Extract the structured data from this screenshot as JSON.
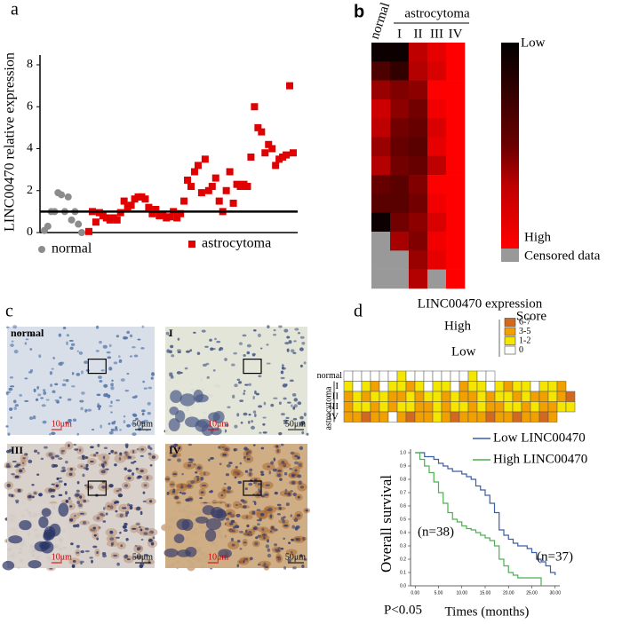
{
  "panel_labels": [
    "a",
    "b",
    "c",
    "d"
  ],
  "chart_data": [
    {
      "type": "strip",
      "y_label": "LINC00470 relative expression",
      "ylim": [
        0,
        8
      ],
      "yticks": [
        0,
        2,
        4,
        6,
        8
      ],
      "reference_line": 1,
      "series": [
        {
          "name": "normal",
          "color": "#8c8c8c",
          "marker": "circle",
          "values": [
            0.1,
            0.3,
            1.0,
            1.0,
            1.9,
            1.8,
            1.0,
            1.7,
            0.6,
            1.0,
            0.4,
            0.0
          ]
        },
        {
          "name": "astrocytoma",
          "color": "#e00000",
          "marker": "square",
          "values": [
            0.05,
            1.0,
            0.5,
            0.95,
            0.8,
            0.7,
            0.6,
            0.7,
            0.6,
            0.95,
            1.5,
            1.2,
            1.3,
            1.6,
            1.7,
            1.7,
            1.6,
            1.2,
            0.9,
            1.1,
            0.8,
            0.85,
            0.7,
            0.75,
            1.0,
            0.7,
            0.9,
            1.5,
            2.5,
            2.2,
            2.9,
            3.2,
            1.9,
            3.5,
            2.0,
            2.2,
            2.6,
            1.5,
            1.0,
            2.0,
            2.9,
            1.4,
            2.3,
            2.2,
            2.3,
            2.2,
            3.6,
            6.0,
            5.0,
            4.8,
            3.8,
            4.2,
            4.0,
            3.2,
            3.5,
            3.6,
            3.7,
            7.0,
            3.8
          ]
        }
      ]
    },
    {
      "type": "heatmap",
      "group_label": "astrocytoma",
      "low_color": "#000000",
      "high_color": "#ff0000",
      "censored_color": "#999999",
      "colorbar_labels": [
        "Low",
        "High",
        "Censored data"
      ],
      "columns": [
        {
          "name": "normal",
          "values": [
            0.05,
            0.3,
            0.6,
            0.8,
            0.75,
            0.6,
            0.7,
            0.4,
            0.35,
            0.05,
            null,
            null,
            null
          ]
        },
        {
          "name": "I",
          "values": [
            0.05,
            0.2,
            0.5,
            0.55,
            0.45,
            0.4,
            0.45,
            0.35,
            0.35,
            0.45,
            0.65,
            null,
            null
          ]
        },
        {
          "name": "II",
          "values": [
            0.75,
            0.7,
            0.55,
            0.45,
            0.4,
            0.35,
            0.4,
            0.5,
            0.45,
            0.55,
            0.5,
            0.6,
            0.7
          ]
        },
        {
          "name": "III",
          "values": [
            0.9,
            0.85,
            1,
            0.95,
            0.85,
            0.9,
            0.75,
            1,
            0.95,
            0.85,
            0.95,
            0.9,
            null
          ]
        },
        {
          "name": "IV",
          "values": [
            1,
            1,
            1,
            1,
            1,
            1,
            1,
            1,
            1,
            1,
            1,
            1,
            1
          ]
        }
      ]
    },
    {
      "type": "score_grid",
      "title": "LINC00470 expression",
      "legend_title": "Score",
      "high_label": "High",
      "low_label": "Low",
      "group_label": "astrocytoma",
      "legend": [
        {
          "label": "6-7",
          "range": [
            6,
            7
          ],
          "color": "#d2691e"
        },
        {
          "label": "3-5",
          "range": [
            3,
            5
          ],
          "color": "#f2a000"
        },
        {
          "label": "1-2",
          "range": [
            1,
            2
          ],
          "color": "#f5e600"
        },
        {
          "label": "0",
          "range": [
            0,
            0
          ],
          "color": "#ffffff"
        }
      ],
      "rows": [
        {
          "name": "normal",
          "values": [
            0,
            0,
            0,
            0,
            0,
            0,
            1,
            0,
            0,
            0,
            0,
            0,
            0,
            0,
            1,
            0,
            0
          ]
        },
        {
          "name": "I",
          "values": [
            1,
            0,
            1,
            4,
            0,
            1,
            1,
            4,
            1,
            0,
            1,
            1,
            0,
            4,
            1,
            1,
            0,
            1,
            4,
            1,
            1,
            0,
            1,
            1,
            4
          ]
        },
        {
          "name": "II",
          "values": [
            4,
            1,
            4,
            1,
            1,
            4,
            4,
            1,
            4,
            1,
            1,
            4,
            1,
            4,
            4,
            1,
            4,
            1,
            1,
            4,
            1,
            4,
            4,
            1,
            4,
            6
          ]
        },
        {
          "name": "III",
          "values": [
            4,
            1,
            1,
            4,
            1,
            4,
            1,
            1,
            4,
            4,
            1,
            4,
            1,
            1,
            4,
            1,
            4,
            4,
            1,
            1,
            4,
            1,
            4,
            4,
            1,
            1
          ]
        },
        {
          "name": "IV",
          "values": [
            4,
            4,
            6,
            4,
            4,
            0,
            4,
            6,
            4,
            4,
            1,
            4,
            6,
            4,
            4,
            4,
            6,
            4,
            4,
            6,
            4,
            4,
            6,
            4
          ]
        }
      ]
    },
    {
      "type": "survival",
      "x_label": "Times (months)",
      "y_label": "Overall  survival",
      "p_value": "P<0.05",
      "xlim": [
        -1,
        31
      ],
      "ylim": [
        0,
        1
      ],
      "xticks": [
        {
          "value": 0,
          "label": "0.00"
        },
        {
          "value": 5,
          "label": "5.00"
        },
        {
          "value": 10,
          "label": "10.00"
        },
        {
          "value": 15,
          "label": "15.00"
        },
        {
          "value": 20,
          "label": "20.00"
        },
        {
          "value": 25,
          "label": "25.00"
        },
        {
          "value": 30,
          "label": "30.00"
        }
      ],
      "yticks": [
        {
          "value": 0,
          "label": "0.0"
        },
        0.1,
        0.2,
        0.3,
        0.4,
        0.5,
        0.6,
        0.7,
        0.8,
        0.9,
        {
          "value": 1,
          "label": "1.0"
        }
      ],
      "series": [
        {
          "name": "Low LINC00470",
          "color": "#3a5fa8",
          "n_label": "(n=37)",
          "x": [
            0,
            2,
            4,
            5,
            6,
            7,
            8,
            10,
            11,
            12,
            13,
            14,
            15,
            16,
            17,
            18,
            19,
            20,
            21,
            22,
            24,
            25,
            26,
            27,
            28,
            29,
            30
          ],
          "values": [
            1.0,
            0.97,
            0.95,
            0.92,
            0.9,
            0.88,
            0.86,
            0.84,
            0.82,
            0.8,
            0.75,
            0.72,
            0.68,
            0.62,
            0.55,
            0.42,
            0.38,
            0.35,
            0.32,
            0.3,
            0.28,
            0.25,
            0.2,
            0.18,
            0.15,
            0.1,
            0.08
          ]
        },
        {
          "name": "High LINC00470",
          "color": "#4caf50",
          "n_label": "(n=38)",
          "x": [
            0,
            1,
            2,
            3,
            4,
            5,
            6,
            7,
            8,
            9,
            10,
            11,
            12,
            13,
            14,
            15,
            16,
            17,
            18,
            19,
            20,
            21,
            22,
            27
          ],
          "values": [
            1.0,
            0.95,
            0.9,
            0.85,
            0.78,
            0.7,
            0.62,
            0.55,
            0.5,
            0.48,
            0.45,
            0.43,
            0.42,
            0.4,
            0.38,
            0.36,
            0.34,
            0.3,
            0.2,
            0.15,
            0.1,
            0.08,
            0.06,
            0.0
          ]
        }
      ]
    }
  ],
  "micrographs": [
    {
      "label": "normal",
      "scale_bars": [
        "10μm",
        "50μm"
      ]
    },
    {
      "label": "I",
      "scale_bars": [
        "10μm",
        "50μm"
      ]
    },
    {
      "label": "III",
      "scale_bars": [
        "10μm",
        "50μm"
      ]
    },
    {
      "label": "IV",
      "scale_bars": [
        "10μm",
        "50μm"
      ]
    }
  ]
}
